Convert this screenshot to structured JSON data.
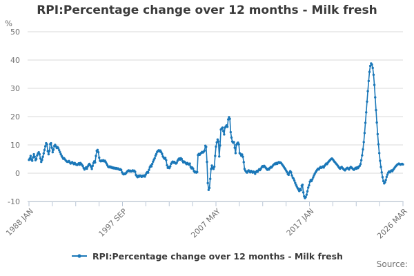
{
  "header": {
    "title": "RPI:Percentage change over 12 months - Milk fresh"
  },
  "legend": {
    "label": "RPI:Percentage change over 12 months - Milk fresh"
  },
  "source": {
    "label": "Source:"
  },
  "colors": {
    "line": "#1a77b8",
    "grid": "#d9d9d9",
    "axis": "#b9c6d6",
    "tick_text": "#6e6e6e",
    "title_text": "#3a3a3a"
  },
  "chart_data": {
    "type": "line",
    "title": "RPI:Percentage change over 12 months - Milk fresh",
    "unit_label": "%",
    "xlabel": "",
    "ylabel": "%",
    "ylim": [
      -10,
      50
    ],
    "y_ticks": [
      50,
      40,
      30,
      20,
      10,
      0,
      -10
    ],
    "grid": true,
    "legend_position": "bottom",
    "x_tick_labels": [
      "1988 JAN",
      "1997 SEP",
      "2007 MAY",
      "2017 JAN",
      "2026 MAR"
    ],
    "x_minor_ticks_between": 3,
    "x_start": "1988 JAN",
    "x_end": "2026 MAR",
    "x_frequency": "monthly",
    "series": [
      {
        "name": "RPI:Percentage change over 12 months - Milk fresh",
        "color": "#1a77b8",
        "values": [
          4.7,
          5.2,
          6.1,
          4.8,
          4.4,
          5.6,
          6.7,
          5.8,
          4.6,
          5.0,
          6.3,
          7.0,
          7.4,
          6.7,
          5.2,
          4.0,
          4.7,
          5.8,
          7.0,
          8.2,
          9.5,
          10.6,
          10.2,
          7.8,
          6.7,
          7.9,
          10.3,
          10.6,
          9.0,
          7.4,
          8.3,
          9.6,
          10.0,
          9.5,
          8.9,
          9.2,
          8.8,
          8.1,
          7.4,
          6.7,
          6.1,
          5.6,
          5.1,
          5.3,
          4.9,
          4.5,
          4.2,
          4.0,
          4.1,
          4.3,
          3.8,
          3.4,
          3.7,
          3.9,
          3.5,
          3.2,
          3.6,
          3.3,
          3.0,
          2.9,
          3.2,
          3.5,
          3.0,
          3.6,
          3.3,
          2.9,
          2.5,
          1.8,
          1.3,
          1.7,
          2.1,
          1.6,
          2.4,
          2.9,
          3.3,
          2.8,
          2.3,
          1.5,
          2.6,
          3.6,
          4.2,
          3.8,
          6.1,
          7.9,
          8.2,
          7.4,
          5.5,
          4.4,
          4.2,
          4.5,
          4.3,
          4.6,
          4.2,
          4.4,
          3.9,
          3.4,
          2.8,
          2.3,
          2.1,
          2.4,
          2.0,
          2.2,
          1.8,
          2.0,
          1.7,
          1.9,
          1.6,
          1.8,
          1.5,
          1.7,
          1.4,
          1.2,
          1.4,
          1.1,
          0.3,
          -0.2,
          -0.4,
          -0.1,
          -0.3,
          0.1,
          0.5,
          0.8,
          1.0,
          0.7,
          0.9,
          0.6,
          0.8,
          1.0,
          0.7,
          0.9,
          0.5,
          -0.6,
          -1.1,
          -1.4,
          -0.9,
          -1.2,
          -0.8,
          -1.0,
          -1.3,
          -0.9,
          -1.1,
          -0.8,
          -1.2,
          -0.5,
          0.1,
          0.4,
          0.2,
          1.2,
          2.1,
          2.7,
          2.4,
          3.3,
          4.1,
          4.8,
          5.3,
          6.2,
          6.8,
          7.5,
          7.9,
          8.1,
          7.7,
          8.0,
          7.4,
          6.8,
          5.9,
          5.5,
          5.1,
          5.4,
          4.6,
          2.8,
          1.9,
          2.2,
          1.8,
          2.4,
          3.3,
          3.8,
          4.1,
          3.7,
          4.0,
          3.6,
          3.4,
          3.7,
          4.4,
          4.9,
          5.2,
          4.8,
          5.3,
          5.0,
          4.3,
          3.8,
          4.1,
          3.9,
          3.5,
          3.2,
          3.6,
          3.3,
          3.0,
          3.4,
          2.2,
          1.7,
          2.0,
          1.6,
          0.8,
          0.3,
          0.5,
          0.2,
          0.4,
          6.4,
          6.8,
          6.5,
          6.9,
          7.2,
          7.5,
          7.3,
          7.6,
          8.0,
          9.7,
          9.3,
          4.0,
          -3.5,
          -5.9,
          -5.2,
          -2.0,
          1.5,
          2.7,
          1.9,
          1.5,
          2.3,
          6.1,
          9.4,
          10.9,
          11.9,
          11.2,
          5.9,
          9.8,
          15.4,
          15.8,
          16.1,
          14.9,
          13.7,
          16.1,
          16.5,
          16.9,
          16.4,
          19.0,
          19.8,
          19.2,
          14.5,
          12.6,
          11.2,
          10.8,
          11.0,
          9.0,
          7.1,
          10.0,
          10.5,
          10.8,
          10.2,
          7.1,
          6.8,
          6.2,
          6.6,
          5.8,
          3.9,
          1.5,
          0.9,
          0.5,
          0.2,
          0.7,
          1.0,
          0.6,
          0.3,
          0.8,
          0.5,
          0.2,
          0.6,
          0.3,
          -0.2,
          0.4,
          0.8,
          0.5,
          1.0,
          1.4,
          1.1,
          1.6,
          2.1,
          2.5,
          2.2,
          2.6,
          2.3,
          1.9,
          1.5,
          1.2,
          1.6,
          1.3,
          1.8,
          2.2,
          2.0,
          2.4,
          2.8,
          3.1,
          3.4,
          3.2,
          3.6,
          3.3,
          3.7,
          3.9,
          3.6,
          3.8,
          3.5,
          3.1,
          2.7,
          2.3,
          1.8,
          1.4,
          0.9,
          0.4,
          -0.3,
          -0.6,
          0.2,
          0.7,
          0.3,
          -0.8,
          -1.6,
          -1.9,
          -2.6,
          -3.4,
          -4.1,
          -4.7,
          -5.3,
          -5.8,
          -6.3,
          -5.5,
          -6.0,
          -4.4,
          -4.1,
          -6.8,
          -8.2,
          -8.8,
          -8.4,
          -7.6,
          -6.4,
          -5.1,
          -4.3,
          -3.0,
          -2.4,
          -2.8,
          -2.2,
          -1.5,
          -0.8,
          -0.2,
          0.3,
          0.8,
          1.2,
          1.6,
          1.3,
          1.8,
          2.2,
          1.9,
          2.1,
          2.4,
          2.0,
          2.6,
          3.0,
          3.4,
          3.2,
          3.7,
          4.1,
          4.4,
          4.7,
          5.0,
          5.2,
          4.9,
          4.5,
          4.1,
          3.8,
          3.4,
          3.1,
          2.7,
          2.3,
          1.9,
          1.6,
          2.0,
          2.2,
          1.8,
          1.5,
          1.2,
          1.0,
          1.4,
          1.7,
          1.9,
          1.6,
          1.3,
          1.8,
          2.2,
          2.0,
          1.7,
          1.4,
          1.2,
          1.6,
          1.9,
          1.6,
          2.1,
          1.8,
          2.3,
          2.6,
          3.2,
          4.6,
          6.3,
          8.4,
          11.0,
          14.2,
          17.8,
          21.5,
          25.3,
          29.0,
          32.6,
          35.8,
          37.9,
          38.8,
          38.4,
          37.2,
          34.8,
          31.2,
          26.8,
          22.3,
          17.9,
          13.8,
          10.2,
          7.1,
          4.4,
          2.2,
          0.3,
          -1.4,
          -2.8,
          -3.6,
          -3.2,
          -2.4,
          -1.3,
          -0.5,
          0.2,
          0.6,
          0.3,
          0.7,
          1.0,
          0.7,
          1.2,
          1.6,
          2.0,
          2.4,
          2.7,
          3.0,
          3.2,
          3.4,
          3.2,
          3.0,
          3.2,
          3.3,
          3.1
        ]
      }
    ]
  }
}
